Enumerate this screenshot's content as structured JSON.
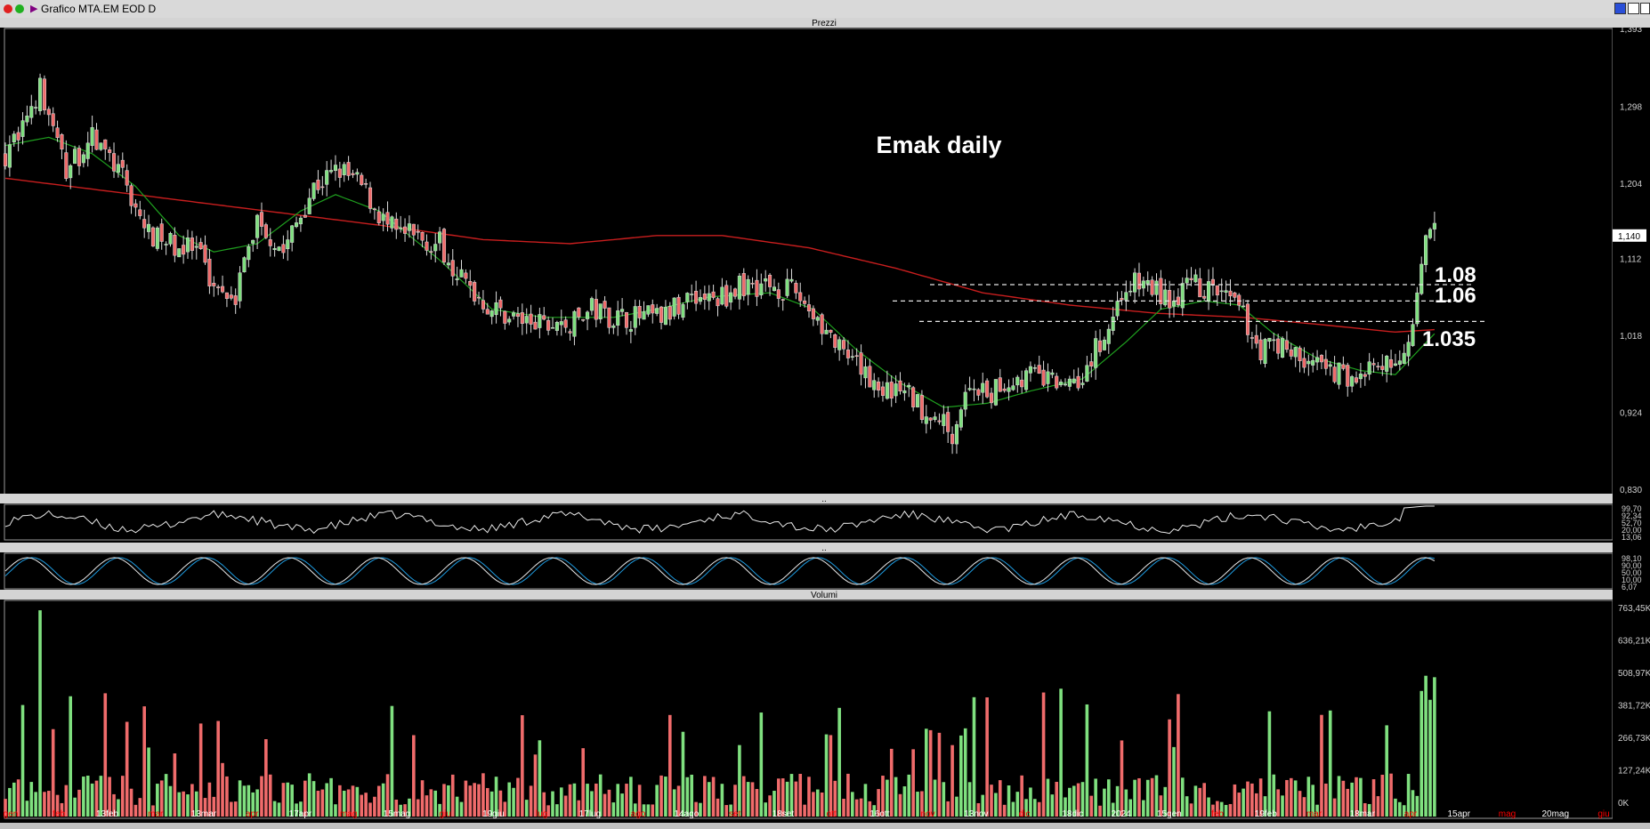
{
  "window": {
    "title": "Grafico MTA.EM EOD D"
  },
  "panels": {
    "price": "Prezzi",
    "ind1": "..",
    "ind2": "..",
    "volume": "Volumi"
  },
  "annotations": {
    "chart_title": "Emak daily",
    "level_108": "1.08",
    "level_106": "1.06",
    "level_1035": "1.035"
  },
  "price_axis_ticks": [
    "1,393",
    "1,298",
    "1,204",
    "1,140",
    "1,112",
    "1,018",
    "0,924",
    "0,830"
  ],
  "price_badge": "1,140",
  "ind1_ticks": [
    "99,70",
    "92,34",
    "52,70",
    "20,00",
    "13,06"
  ],
  "ind2_ticks": [
    "98,10",
    "90,00",
    "50,00",
    "10,00",
    "6,07"
  ],
  "volume_ticks": [
    "763,45K",
    "636,21K",
    "508,97K",
    "381,72K",
    "266,73K",
    "127,24K",
    "0K"
  ],
  "x_axis_labels": [
    {
      "t": "gen",
      "c": "#ff0000"
    },
    {
      "t": "feb",
      "c": "#ff0000"
    },
    {
      "t": "13feb",
      "c": "#ffffff"
    },
    {
      "t": "mar",
      "c": "#ff0000"
    },
    {
      "t": "13mar",
      "c": "#ffffff"
    },
    {
      "t": "apr",
      "c": "#ff0000"
    },
    {
      "t": "17apr",
      "c": "#ffffff"
    },
    {
      "t": "mag",
      "c": "#ff0000"
    },
    {
      "t": "15mag",
      "c": "#ffffff"
    },
    {
      "t": "giu",
      "c": "#ff0000"
    },
    {
      "t": "19giu",
      "c": "#ffffff"
    },
    {
      "t": "lug",
      "c": "#ff0000"
    },
    {
      "t": "17lug",
      "c": "#ffffff"
    },
    {
      "t": "ago",
      "c": "#ff0000"
    },
    {
      "t": "14ago",
      "c": "#ffffff"
    },
    {
      "t": "set",
      "c": "#ff0000"
    },
    {
      "t": "18set",
      "c": "#ffffff"
    },
    {
      "t": "ott",
      "c": "#ff0000"
    },
    {
      "t": "16ott",
      "c": "#ffffff"
    },
    {
      "t": "nov",
      "c": "#ff0000"
    },
    {
      "t": "13nov",
      "c": "#ffffff"
    },
    {
      "t": "dic",
      "c": "#ff0000"
    },
    {
      "t": "18dic",
      "c": "#ffffff"
    },
    {
      "t": "2024",
      "c": "#ffffff"
    },
    {
      "t": "15gen",
      "c": "#ffffff"
    },
    {
      "t": "feb",
      "c": "#ff0000"
    },
    {
      "t": "19feb",
      "c": "#ffffff"
    },
    {
      "t": "mar",
      "c": "#ff0000"
    },
    {
      "t": "18mar",
      "c": "#ffffff"
    },
    {
      "t": "apr",
      "c": "#ff0000"
    },
    {
      "t": "15apr",
      "c": "#ffffff"
    },
    {
      "t": "mag",
      "c": "#ff0000"
    },
    {
      "t": "20mag",
      "c": "#ffffff"
    },
    {
      "t": "giu",
      "c": "#ff0000"
    }
  ],
  "colors": {
    "up": "#7fe07f",
    "down": "#f06b6b",
    "ma_fast": "#1fa01f",
    "ma_slow": "#c81e1e",
    "ind1_line": "#e8e8e8",
    "ind2_a": "#e8e8e8",
    "ind2_b": "#1e9be0",
    "panel_border": "#9a9a9a"
  },
  "chart_data": {
    "type": "candlestick",
    "title": "Emak daily",
    "y_range": [
      0.83,
      1.393
    ],
    "last_close": 1.14,
    "horizontal_levels": [
      1.08,
      1.06,
      1.035
    ],
    "price_path": [
      [
        0,
        1.24
      ],
      [
        8,
        1.32
      ],
      [
        14,
        1.22
      ],
      [
        20,
        1.26
      ],
      [
        26,
        1.22
      ],
      [
        33,
        1.14
      ],
      [
        38,
        1.13
      ],
      [
        44,
        1.12
      ],
      [
        48,
        1.08
      ],
      [
        53,
        1.07
      ],
      [
        58,
        1.16
      ],
      [
        64,
        1.12
      ],
      [
        71,
        1.2
      ],
      [
        77,
        1.22
      ],
      [
        82,
        1.2
      ],
      [
        88,
        1.15
      ],
      [
        93,
        1.14
      ],
      [
        100,
        1.13
      ],
      [
        106,
        1.08
      ],
      [
        112,
        1.05
      ],
      [
        117,
        1.04
      ],
      [
        123,
        1.03
      ],
      [
        130,
        1.03
      ],
      [
        135,
        1.05
      ],
      [
        140,
        1.04
      ],
      [
        147,
        1.04
      ],
      [
        152,
        1.04
      ],
      [
        158,
        1.07
      ],
      [
        163,
        1.06
      ],
      [
        170,
        1.08
      ],
      [
        176,
        1.08
      ],
      [
        182,
        1.07
      ],
      [
        187,
        1.04
      ],
      [
        193,
        0.99
      ],
      [
        198,
        0.97
      ],
      [
        203,
        0.95
      ],
      [
        207,
        0.95
      ],
      [
        211,
        0.93
      ],
      [
        214,
        0.92
      ],
      [
        218,
        0.9
      ],
      [
        222,
        0.96
      ],
      [
        226,
        0.94
      ],
      [
        230,
        0.96
      ],
      [
        236,
        0.97
      ],
      [
        242,
        0.96
      ],
      [
        248,
        0.97
      ],
      [
        253,
        1.02
      ],
      [
        258,
        1.08
      ],
      [
        263,
        1.08
      ],
      [
        268,
        1.06
      ],
      [
        273,
        1.08
      ],
      [
        279,
        1.07
      ],
      [
        284,
        1.05
      ],
      [
        289,
        1.0
      ],
      [
        293,
        1.01
      ],
      [
        298,
        0.99
      ],
      [
        303,
        0.98
      ],
      [
        308,
        0.97
      ],
      [
        312,
        0.97
      ],
      [
        317,
        0.98
      ],
      [
        320,
        0.98
      ],
      [
        323,
        1.02
      ],
      [
        325,
        1.06
      ],
      [
        327,
        1.13
      ],
      [
        329,
        1.145
      ]
    ],
    "ma_fast_path": [
      [
        0,
        1.25
      ],
      [
        10,
        1.26
      ],
      [
        20,
        1.24
      ],
      [
        30,
        1.2
      ],
      [
        40,
        1.14
      ],
      [
        48,
        1.12
      ],
      [
        58,
        1.13
      ],
      [
        68,
        1.17
      ],
      [
        76,
        1.19
      ],
      [
        86,
        1.17
      ],
      [
        100,
        1.11
      ],
      [
        112,
        1.05
      ],
      [
        124,
        1.04
      ],
      [
        140,
        1.04
      ],
      [
        150,
        1.05
      ],
      [
        162,
        1.065
      ],
      [
        176,
        1.07
      ],
      [
        186,
        1.05
      ],
      [
        196,
        1.0
      ],
      [
        206,
        0.96
      ],
      [
        216,
        0.93
      ],
      [
        226,
        0.935
      ],
      [
        236,
        0.95
      ],
      [
        248,
        0.965
      ],
      [
        258,
        1.01
      ],
      [
        266,
        1.05
      ],
      [
        276,
        1.06
      ],
      [
        284,
        1.055
      ],
      [
        292,
        1.02
      ],
      [
        302,
        0.99
      ],
      [
        312,
        0.975
      ],
      [
        320,
        0.97
      ],
      [
        329,
        1.02
      ]
    ],
    "ma_slow_path": [
      [
        0,
        1.21
      ],
      [
        30,
        1.19
      ],
      [
        60,
        1.17
      ],
      [
        90,
        1.15
      ],
      [
        110,
        1.135
      ],
      [
        130,
        1.13
      ],
      [
        150,
        1.14
      ],
      [
        165,
        1.14
      ],
      [
        185,
        1.125
      ],
      [
        205,
        1.1
      ],
      [
        225,
        1.07
      ],
      [
        245,
        1.055
      ],
      [
        265,
        1.045
      ],
      [
        285,
        1.04
      ],
      [
        305,
        1.03
      ],
      [
        320,
        1.022
      ],
      [
        329,
        1.025
      ]
    ],
    "x_range": [
      0,
      370
    ]
  }
}
